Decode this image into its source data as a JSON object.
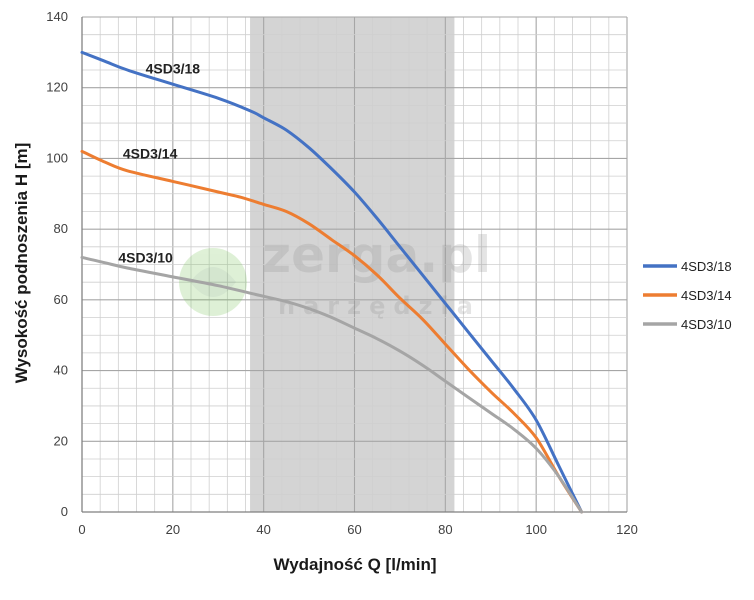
{
  "chart_data": {
    "type": "line",
    "xlabel": "Wydajność Q [l/min]",
    "ylabel": "Wysokość podnoszenia H [m]",
    "xlim": [
      0,
      120
    ],
    "ylim": [
      0,
      140
    ],
    "x_ticks": [
      "0",
      "20",
      "40",
      "60",
      "80",
      "100",
      "120"
    ],
    "y_ticks": [
      "0",
      "20",
      "40",
      "60",
      "80",
      "100",
      "120",
      "140"
    ],
    "grid": true,
    "legend_position": "right",
    "highlight_range": [
      37,
      82
    ],
    "series": [
      {
        "name": "4SD3/18",
        "color": "#4472c4",
        "x": [
          0,
          5,
          10,
          20,
          30,
          37,
          40,
          45,
          50,
          55,
          60,
          65,
          70,
          75,
          80,
          85,
          90,
          95,
          100,
          105,
          110
        ],
        "y": [
          130,
          127.5,
          125,
          121,
          117,
          113.5,
          111.5,
          108,
          103,
          97,
          90.5,
          83,
          75,
          67,
          59,
          51,
          43,
          35,
          26,
          13,
          0
        ]
      },
      {
        "name": "4SD3/14",
        "color": "#ed7d31",
        "x": [
          0,
          5,
          10,
          20,
          30,
          35,
          40,
          45,
          50,
          55,
          60,
          65,
          70,
          75,
          80,
          85,
          90,
          95,
          100,
          105,
          110
        ],
        "y": [
          102,
          99,
          96.5,
          93.5,
          90.5,
          89,
          87,
          85,
          81.5,
          77,
          72.5,
          67,
          60.5,
          54.5,
          47.5,
          40.5,
          34,
          28,
          21,
          10,
          0
        ]
      },
      {
        "name": "4SD3/10",
        "color": "#a5a5a5",
        "x": [
          0,
          5,
          10,
          20,
          30,
          40,
          45,
          50,
          55,
          60,
          65,
          70,
          75,
          80,
          85,
          90,
          95,
          100,
          105,
          110
        ],
        "y": [
          72,
          70.5,
          69,
          66.5,
          64,
          61,
          59.5,
          57.5,
          55,
          52,
          49,
          45.5,
          41.5,
          37,
          32.5,
          28,
          23.5,
          18,
          10,
          0
        ]
      }
    ],
    "curve_labels": [
      {
        "text": "4SD3/18",
        "x": 20,
        "y": 124
      },
      {
        "text": "4SD3/14",
        "x": 15,
        "y": 100
      },
      {
        "text": "4SD3/10",
        "x": 14,
        "y": 70.5
      }
    ]
  },
  "watermark": {
    "brand": "zerga.pl",
    "tagline": "narzędzia"
  }
}
